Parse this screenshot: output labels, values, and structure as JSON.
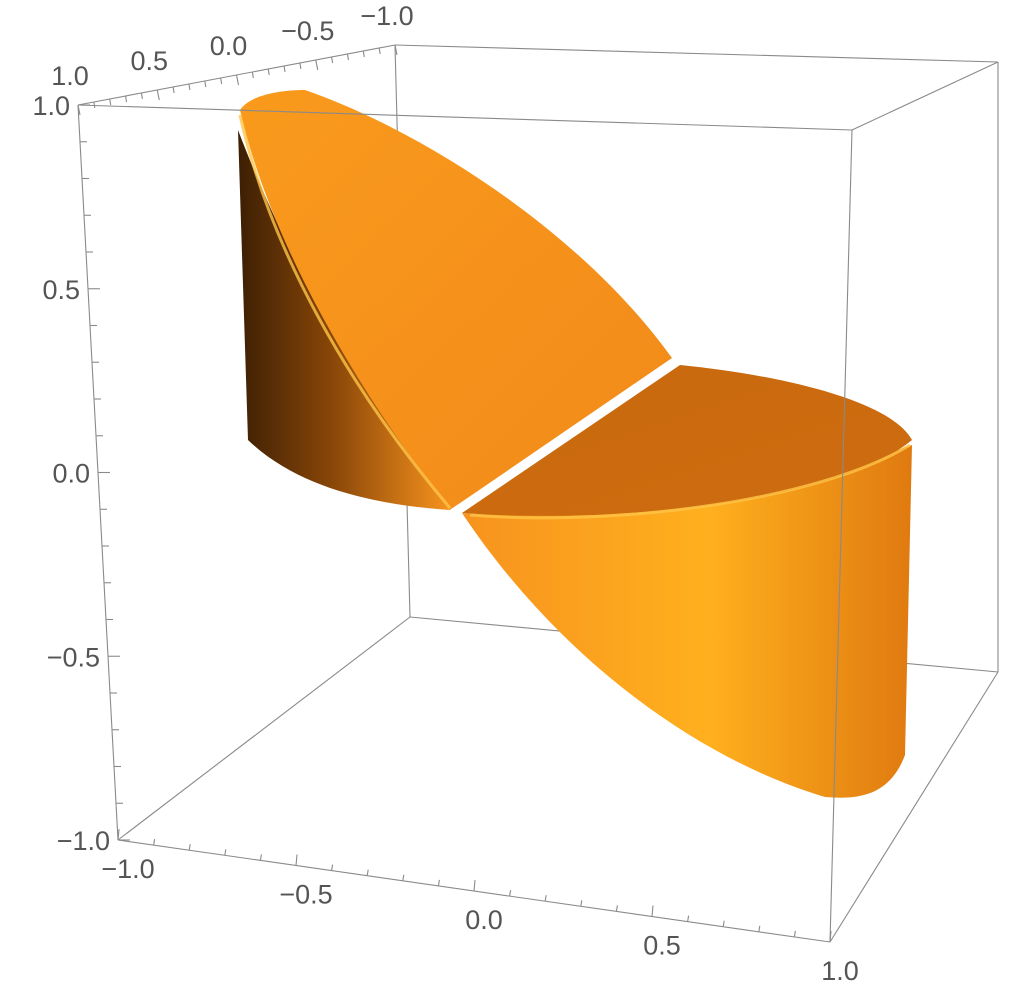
{
  "chart_data": {
    "type": "surface3d",
    "title": "",
    "xlabel": "",
    "ylabel": "",
    "zlabel": "",
    "xlim": [
      -1,
      1
    ],
    "ylim": [
      -1,
      1
    ],
    "zlim": [
      -1,
      1
    ],
    "x_ticks": [
      {
        "value": -1.0,
        "label": "−1.0"
      },
      {
        "value": -0.5,
        "label": "−0.5"
      },
      {
        "value": 0.0,
        "label": "0.0"
      },
      {
        "value": 0.5,
        "label": "0.5"
      },
      {
        "value": 1.0,
        "label": "1.0"
      }
    ],
    "y_ticks": [
      {
        "value": 1.0,
        "label": "1.0"
      },
      {
        "value": 0.5,
        "label": "0.5"
      },
      {
        "value": 0.0,
        "label": "0.0"
      },
      {
        "value": -0.5,
        "label": "−0.5"
      },
      {
        "value": -1.0,
        "label": "−1.0"
      }
    ],
    "z_ticks": [
      {
        "value": 1.0,
        "label": "1.0"
      },
      {
        "value": 0.5,
        "label": "0.5"
      },
      {
        "value": 0.0,
        "label": "0.0"
      },
      {
        "value": -0.5,
        "label": "−0.5"
      },
      {
        "value": -1.0,
        "label": "−1.0"
      }
    ],
    "boxed": true,
    "grid": false,
    "surface_color": "#f7931e",
    "regions": [
      {
        "name": "",
        "x_range": [
          -1,
          0
        ],
        "z_range": [
          0.1,
          1.0
        ]
      },
      {
        "name": "",
        "x_range": [
          0,
          1
        ],
        "z_range": [
          -0.9,
          0.3
        ]
      }
    ]
  }
}
